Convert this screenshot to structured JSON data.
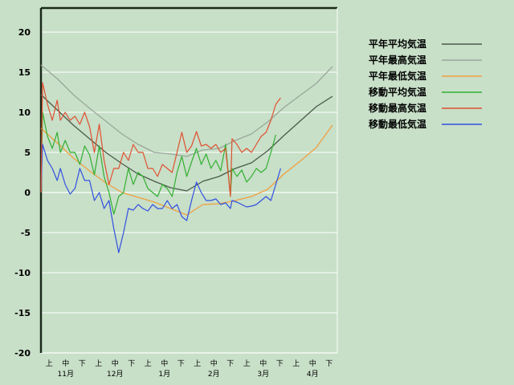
{
  "chart_data": {
    "type": "line",
    "title": "",
    "xlabel": "",
    "ylabel": "",
    "ylim": [
      -20,
      23
    ],
    "y_ticks": [
      20,
      15,
      10,
      5,
      0,
      -5,
      -10,
      -15,
      -20
    ],
    "x_ticks": [
      "上",
      "中",
      "下",
      "上",
      "中",
      "下",
      "上",
      "中",
      "下",
      "上",
      "中",
      "下",
      "上",
      "中",
      "下",
      "上",
      "中",
      "下"
    ],
    "x_months": [
      "11月",
      "12月",
      "1月",
      "2月",
      "3月",
      "4月"
    ],
    "x_range_days": [
      0,
      183
    ],
    "grid": true,
    "legend_position": "right",
    "series": [
      {
        "name": "平年平均気温",
        "color": "#4a5a4a",
        "x": [
          0,
          10,
          20,
          30,
          40,
          50,
          60,
          70,
          80,
          90,
          100,
          110,
          120,
          130,
          140,
          150,
          160,
          170,
          180
        ],
        "y": [
          12.2,
          10.3,
          8.4,
          6.7,
          5.0,
          3.6,
          2.3,
          1.4,
          0.6,
          0.2,
          1.4,
          2.0,
          3.0,
          3.7,
          5.2,
          7.1,
          8.9,
          10.7,
          12.0
        ]
      },
      {
        "name": "平年最高気温",
        "color": "#9aa89a",
        "x": [
          0,
          10,
          20,
          30,
          40,
          50,
          60,
          70,
          80,
          90,
          100,
          110,
          120,
          130,
          140,
          150,
          160,
          170,
          180
        ],
        "y": [
          15.9,
          14.2,
          12.2,
          10.5,
          8.9,
          7.3,
          6.0,
          5.0,
          4.8,
          4.5,
          5.3,
          5.5,
          6.5,
          7.3,
          8.8,
          10.6,
          12.1,
          13.6,
          15.7
        ]
      },
      {
        "name": "平年最低気温",
        "color": "#f0a040",
        "x": [
          0,
          10,
          20,
          30,
          40,
          50,
          60,
          70,
          80,
          90,
          100,
          110,
          120,
          130,
          140,
          150,
          160,
          170,
          180
        ],
        "y": [
          8.0,
          6.2,
          4.3,
          2.7,
          1.2,
          0.0,
          -0.6,
          -1.2,
          -2.0,
          -2.8,
          -1.5,
          -1.4,
          -1.0,
          -0.5,
          0.4,
          2.3,
          3.9,
          5.6,
          8.4
        ]
      },
      {
        "name": "移動平均気温",
        "color": "#30b030",
        "x": [
          0,
          1,
          4,
          7,
          10,
          12,
          15,
          18,
          21,
          24,
          27,
          30,
          33,
          36,
          39,
          42,
          45,
          48,
          51,
          54,
          57,
          60,
          63,
          66,
          69,
          72,
          75,
          78,
          81,
          84,
          87,
          90,
          93,
          96,
          99,
          102,
          105,
          108,
          111,
          114,
          117,
          118,
          121,
          124,
          127,
          130,
          133,
          136,
          139,
          142,
          145
        ],
        "y": [
          0,
          10,
          7,
          5.5,
          7.5,
          5,
          6.5,
          5,
          5,
          3.5,
          5.8,
          4.7,
          2.2,
          5.8,
          2,
          0,
          -2.7,
          -0.5,
          0,
          3,
          1,
          2.5,
          2,
          0.5,
          0,
          -0.5,
          1,
          0.5,
          -0.5,
          2.5,
          4.5,
          2,
          3.8,
          5.5,
          3.5,
          4.8,
          3,
          4,
          2.7,
          6,
          -0.4,
          3,
          2,
          2.8,
          1.3,
          2,
          3,
          2.5,
          3,
          5,
          7.2
        ]
      },
      {
        "name": "移動最高気温",
        "color": "#e05030",
        "x": [
          0,
          1,
          4,
          7,
          10,
          12,
          15,
          18,
          21,
          24,
          27,
          30,
          33,
          36,
          39,
          42,
          45,
          48,
          51,
          54,
          57,
          60,
          63,
          66,
          69,
          72,
          75,
          78,
          81,
          84,
          87,
          90,
          93,
          96,
          99,
          102,
          105,
          108,
          111,
          114,
          117,
          118,
          121,
          124,
          127,
          130,
          133,
          136,
          139,
          142,
          145,
          148
        ],
        "y": [
          0,
          13.7,
          11,
          9,
          11.5,
          9,
          10,
          9,
          9.5,
          8.5,
          10,
          8.2,
          5,
          8.5,
          4,
          1,
          3,
          3,
          5,
          4,
          6,
          5,
          5,
          3,
          3,
          2,
          3.5,
          3,
          2.5,
          5,
          7.5,
          5,
          5.8,
          7.6,
          5.8,
          6,
          5.5,
          6,
          5,
          5.5,
          -0.5,
          6.7,
          6,
          5,
          5.5,
          5,
          6,
          7,
          7.5,
          9,
          11,
          11.8
        ]
      },
      {
        "name": "移動最低気温",
        "color": "#3050e0",
        "x": [
          0,
          1,
          4,
          7,
          10,
          12,
          15,
          18,
          21,
          24,
          27,
          30,
          33,
          36,
          39,
          42,
          45,
          48,
          51,
          54,
          57,
          60,
          63,
          66,
          69,
          72,
          75,
          78,
          81,
          84,
          87,
          90,
          93,
          96,
          99,
          102,
          105,
          108,
          111,
          114,
          117,
          118,
          121,
          124,
          127,
          130,
          133,
          136,
          139,
          142,
          145,
          148
        ],
        "y": [
          0,
          6,
          4,
          3,
          1.5,
          3,
          1,
          -0.2,
          0.5,
          3,
          1.5,
          1.5,
          -1,
          0,
          -2,
          -1,
          -4.5,
          -7.5,
          -5,
          -2,
          -2.2,
          -1.5,
          -2,
          -2.3,
          -1.5,
          -2,
          -2,
          -1,
          -2,
          -1.5,
          -3,
          -3.5,
          -1,
          1.3,
          0,
          -1,
          -1,
          -0.8,
          -1.5,
          -1.3,
          -2,
          -1,
          -1.2,
          -1.5,
          -1.8,
          -1.7,
          -1.5,
          -1,
          -0.5,
          -1,
          1,
          3
        ]
      }
    ]
  }
}
